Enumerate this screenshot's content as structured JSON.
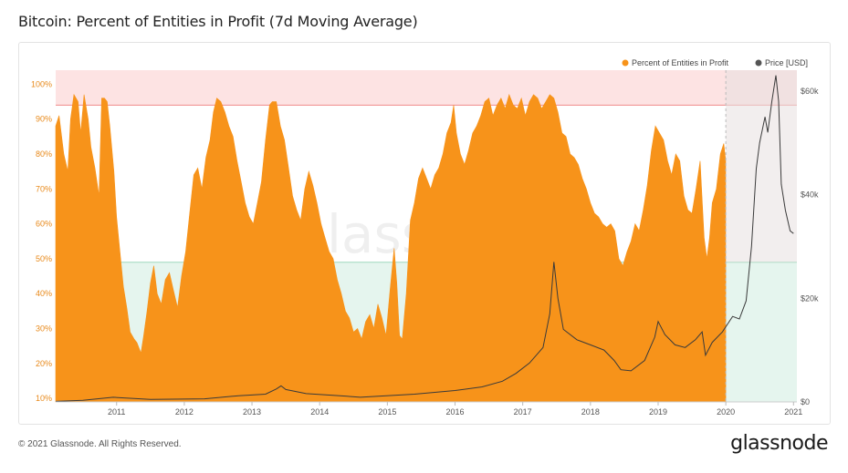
{
  "page": {
    "title": "Bitcoin: Percent of Entities in Profit (7d Moving Average)",
    "copyright": "© 2021 Glassnode. All Rights Reserved.",
    "brand": "glassnode",
    "watermark": "glassnode"
  },
  "colors": {
    "profit": "#f7931a",
    "price": "#3a3a3a",
    "upper_band": "#fde3e3",
    "upper_line": "#f08a8a",
    "lower_band": "#e5f5ee",
    "lower_line": "#9ed8bd",
    "shade": "#e8e0e0"
  },
  "chart_data": {
    "type": "area",
    "title": "Bitcoin: Percent of Entities in Profit (7d Moving Average)",
    "legend": [
      "Percent of Entities in Profit",
      "Price [USD]"
    ],
    "legend_position": "top-right",
    "x_ticks": [
      "2011",
      "2012",
      "2013",
      "2014",
      "2015",
      "2016",
      "2017",
      "2018",
      "2019",
      "2020",
      "2021"
    ],
    "x_range": [
      2010.6,
      2021.55
    ],
    "y_left": {
      "ticks": [
        "10%",
        "20%",
        "30%",
        "40%",
        "50%",
        "60%",
        "70%",
        "80%",
        "90%",
        "100%"
      ],
      "range": [
        9,
        104
      ]
    },
    "y_right": {
      "ticks": [
        "$0",
        "$20k",
        "$40k",
        "$60k"
      ],
      "range": [
        0,
        64000
      ]
    },
    "bands": {
      "upper_threshold": 94,
      "lower_threshold": 49,
      "shaded_from": 2020.5
    },
    "profit_end": 2020.5,
    "series": [
      {
        "name": "Percent of Entities in Profit",
        "axis": "left",
        "points": [
          [
            2010.6,
            88
          ],
          [
            2010.65,
            91
          ],
          [
            2010.72,
            80
          ],
          [
            2010.78,
            75
          ],
          [
            2010.82,
            90
          ],
          [
            2010.87,
            97
          ],
          [
            2010.93,
            95
          ],
          [
            2010.97,
            86
          ],
          [
            2011.02,
            97
          ],
          [
            2011.08,
            90
          ],
          [
            2011.12,
            82
          ],
          [
            2011.18,
            76
          ],
          [
            2011.24,
            68
          ],
          [
            2011.28,
            96
          ],
          [
            2011.32,
            96
          ],
          [
            2011.36,
            95
          ],
          [
            2011.4,
            88
          ],
          [
            2011.46,
            75
          ],
          [
            2011.5,
            62
          ],
          [
            2011.55,
            52
          ],
          [
            2011.6,
            42
          ],
          [
            2011.65,
            36
          ],
          [
            2011.7,
            29
          ],
          [
            2011.76,
            27
          ],
          [
            2011.8,
            26
          ],
          [
            2011.86,
            23
          ],
          [
            2011.9,
            28
          ],
          [
            2011.95,
            35
          ],
          [
            2012.0,
            43
          ],
          [
            2012.05,
            48
          ],
          [
            2012.1,
            40
          ],
          [
            2012.16,
            37
          ],
          [
            2012.22,
            44
          ],
          [
            2012.28,
            46
          ],
          [
            2012.34,
            41
          ],
          [
            2012.4,
            36
          ],
          [
            2012.46,
            45
          ],
          [
            2012.52,
            52
          ],
          [
            2012.58,
            63
          ],
          [
            2012.64,
            74
          ],
          [
            2012.7,
            76
          ],
          [
            2012.76,
            70
          ],
          [
            2012.82,
            79
          ],
          [
            2012.88,
            84
          ],
          [
            2012.93,
            92
          ],
          [
            2012.98,
            96
          ],
          [
            2013.04,
            95
          ],
          [
            2013.1,
            92
          ],
          [
            2013.16,
            88
          ],
          [
            2013.22,
            85
          ],
          [
            2013.28,
            78
          ],
          [
            2013.34,
            72
          ],
          [
            2013.4,
            66
          ],
          [
            2013.46,
            62
          ],
          [
            2013.52,
            60
          ],
          [
            2013.58,
            66
          ],
          [
            2013.64,
            72
          ],
          [
            2013.7,
            84
          ],
          [
            2013.76,
            94
          ],
          [
            2013.8,
            95
          ],
          [
            2013.86,
            95
          ],
          [
            2013.92,
            88
          ],
          [
            2013.98,
            84
          ],
          [
            2014.04,
            76
          ],
          [
            2014.1,
            68
          ],
          [
            2014.16,
            64
          ],
          [
            2014.22,
            61
          ],
          [
            2014.28,
            70
          ],
          [
            2014.34,
            75
          ],
          [
            2014.4,
            71
          ],
          [
            2014.46,
            66
          ],
          [
            2014.52,
            60
          ],
          [
            2014.58,
            56
          ],
          [
            2014.64,
            52
          ],
          [
            2014.7,
            50
          ],
          [
            2014.76,
            44
          ],
          [
            2014.82,
            40
          ],
          [
            2014.88,
            35
          ],
          [
            2014.94,
            33
          ],
          [
            2015.0,
            29
          ],
          [
            2015.06,
            30
          ],
          [
            2015.12,
            27
          ],
          [
            2015.18,
            32
          ],
          [
            2015.24,
            34
          ],
          [
            2015.3,
            30
          ],
          [
            2015.36,
            37
          ],
          [
            2015.42,
            33
          ],
          [
            2015.48,
            28
          ],
          [
            2015.54,
            41
          ],
          [
            2015.6,
            53
          ],
          [
            2015.64,
            43
          ],
          [
            2015.68,
            28
          ],
          [
            2015.72,
            27
          ],
          [
            2015.78,
            40
          ],
          [
            2015.84,
            61
          ],
          [
            2015.9,
            66
          ],
          [
            2015.96,
            73
          ],
          [
            2016.02,
            76
          ],
          [
            2016.08,
            73
          ],
          [
            2016.14,
            70
          ],
          [
            2016.2,
            74
          ],
          [
            2016.26,
            76
          ],
          [
            2016.32,
            80
          ],
          [
            2016.38,
            86
          ],
          [
            2016.44,
            89
          ],
          [
            2016.48,
            94
          ],
          [
            2016.52,
            86
          ],
          [
            2016.58,
            80
          ],
          [
            2016.64,
            77
          ],
          [
            2016.7,
            81
          ],
          [
            2016.76,
            86
          ],
          [
            2016.82,
            88
          ],
          [
            2016.88,
            91
          ],
          [
            2016.94,
            95
          ],
          [
            2017.0,
            96
          ],
          [
            2017.06,
            91
          ],
          [
            2017.12,
            94
          ],
          [
            2017.18,
            96
          ],
          [
            2017.24,
            93
          ],
          [
            2017.3,
            97
          ],
          [
            2017.36,
            94
          ],
          [
            2017.42,
            93
          ],
          [
            2017.48,
            96
          ],
          [
            2017.54,
            91
          ],
          [
            2017.6,
            95
          ],
          [
            2017.66,
            97
          ],
          [
            2017.72,
            96
          ],
          [
            2017.78,
            93
          ],
          [
            2017.84,
            95
          ],
          [
            2017.9,
            97
          ],
          [
            2017.96,
            96
          ],
          [
            2018.02,
            92
          ],
          [
            2018.08,
            86
          ],
          [
            2018.14,
            85
          ],
          [
            2018.2,
            80
          ],
          [
            2018.26,
            79
          ],
          [
            2018.32,
            77
          ],
          [
            2018.38,
            73
          ],
          [
            2018.44,
            70
          ],
          [
            2018.5,
            66
          ],
          [
            2018.56,
            63
          ],
          [
            2018.62,
            62
          ],
          [
            2018.68,
            60
          ],
          [
            2018.74,
            59
          ],
          [
            2018.8,
            60
          ],
          [
            2018.86,
            58
          ],
          [
            2018.92,
            50
          ],
          [
            2018.98,
            48
          ],
          [
            2019.04,
            52
          ],
          [
            2019.1,
            55
          ],
          [
            2019.16,
            60
          ],
          [
            2019.22,
            58
          ],
          [
            2019.28,
            64
          ],
          [
            2019.34,
            71
          ],
          [
            2019.4,
            81
          ],
          [
            2019.46,
            88
          ],
          [
            2019.52,
            86
          ],
          [
            2019.58,
            84
          ],
          [
            2019.64,
            78
          ],
          [
            2019.7,
            74
          ],
          [
            2019.76,
            80
          ],
          [
            2019.82,
            78
          ],
          [
            2019.88,
            68
          ],
          [
            2019.94,
            64
          ],
          [
            2020.0,
            63
          ],
          [
            2020.06,
            70
          ],
          [
            2020.12,
            78
          ],
          [
            2020.18,
            56
          ],
          [
            2020.22,
            50
          ],
          [
            2020.26,
            56
          ],
          [
            2020.3,
            66
          ],
          [
            2020.36,
            70
          ],
          [
            2020.42,
            80
          ],
          [
            2020.47,
            83
          ],
          [
            2020.5,
            78
          ]
        ]
      },
      {
        "name": "Price [USD]",
        "axis": "right",
        "points": [
          [
            2010.6,
            100
          ],
          [
            2011.0,
            300
          ],
          [
            2011.45,
            900
          ],
          [
            2012.0,
            500
          ],
          [
            2012.8,
            600
          ],
          [
            2013.3,
            1200
          ],
          [
            2013.7,
            1500
          ],
          [
            2013.86,
            2500
          ],
          [
            2013.93,
            3100
          ],
          [
            2014.0,
            2400
          ],
          [
            2014.3,
            1600
          ],
          [
            2014.8,
            1200
          ],
          [
            2015.1,
            900
          ],
          [
            2015.9,
            1500
          ],
          [
            2016.5,
            2200
          ],
          [
            2016.9,
            2900
          ],
          [
            2017.2,
            4000
          ],
          [
            2017.4,
            5500
          ],
          [
            2017.6,
            7500
          ],
          [
            2017.8,
            10500
          ],
          [
            2017.9,
            17000
          ],
          [
            2017.96,
            27000
          ],
          [
            2018.02,
            20000
          ],
          [
            2018.1,
            14000
          ],
          [
            2018.3,
            12000
          ],
          [
            2018.5,
            11000
          ],
          [
            2018.7,
            10000
          ],
          [
            2018.85,
            8000
          ],
          [
            2018.95,
            6200
          ],
          [
            2019.1,
            6000
          ],
          [
            2019.3,
            8000
          ],
          [
            2019.45,
            12500
          ],
          [
            2019.5,
            15500
          ],
          [
            2019.6,
            13000
          ],
          [
            2019.75,
            11000
          ],
          [
            2019.9,
            10500
          ],
          [
            2020.05,
            12000
          ],
          [
            2020.15,
            13500
          ],
          [
            2020.2,
            9000
          ],
          [
            2020.3,
            11500
          ],
          [
            2020.45,
            13500
          ],
          [
            2020.6,
            16500
          ],
          [
            2020.7,
            16000
          ],
          [
            2020.8,
            19500
          ],
          [
            2020.88,
            30000
          ],
          [
            2020.95,
            45000
          ],
          [
            2021.0,
            50000
          ],
          [
            2021.08,
            55000
          ],
          [
            2021.12,
            52000
          ],
          [
            2021.18,
            58000
          ],
          [
            2021.24,
            63000
          ],
          [
            2021.28,
            58000
          ],
          [
            2021.32,
            42000
          ],
          [
            2021.38,
            37000
          ],
          [
            2021.45,
            33000
          ],
          [
            2021.5,
            32500
          ]
        ]
      }
    ]
  }
}
